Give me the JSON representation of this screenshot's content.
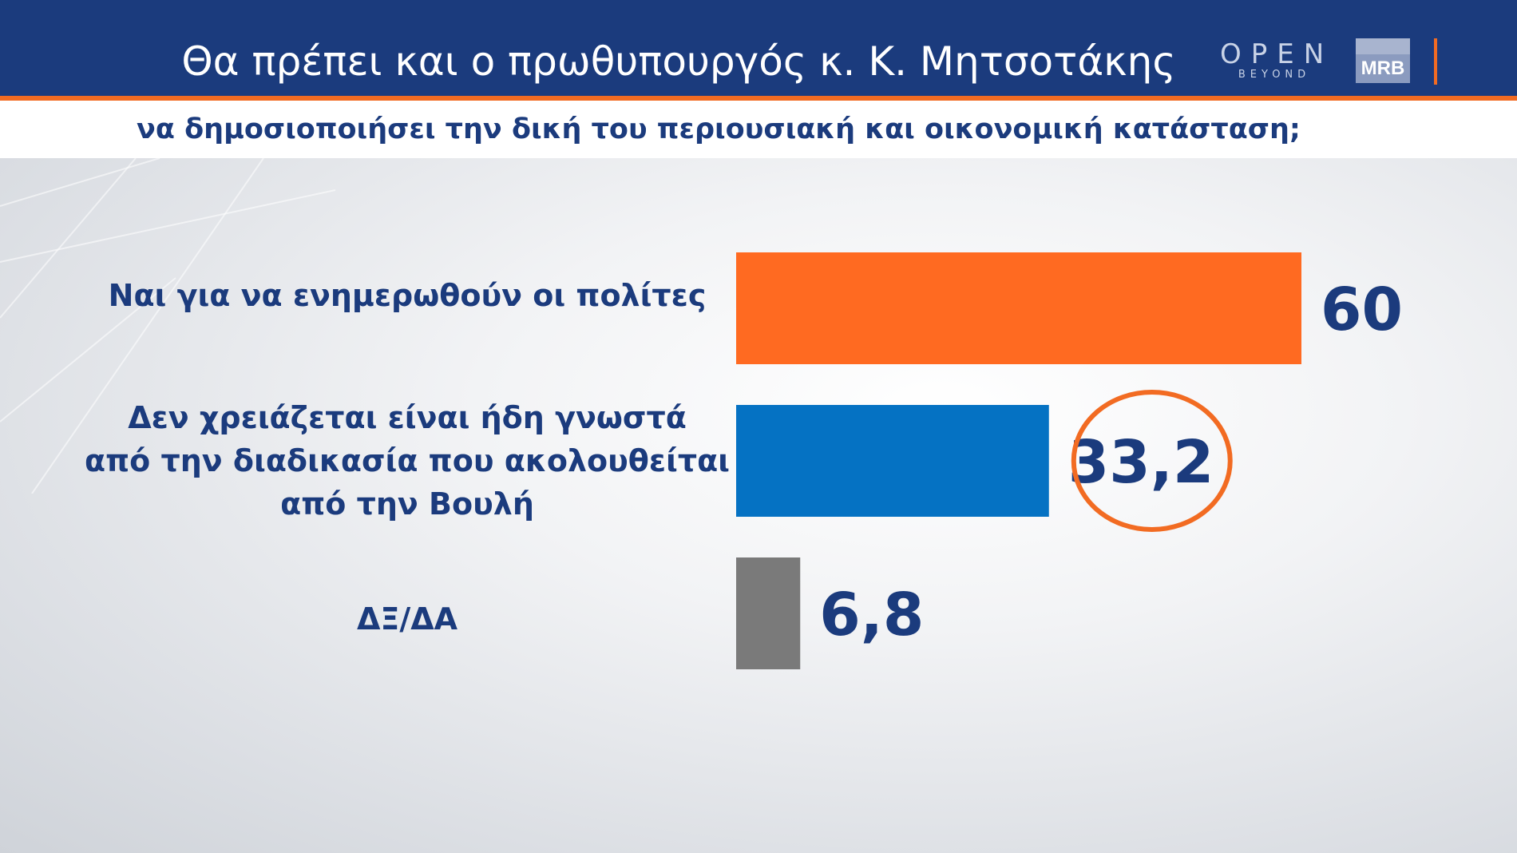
{
  "header": {
    "title": "Θα πρέπει και ο πρωθυπουργός κ. Κ. Μητσοτάκης",
    "subtitle": "να δημοσιοποιήσει την δική του περιουσιακή και οικονομική κατάσταση;"
  },
  "logos": {
    "open_main": "OPEN",
    "open_sub": "BEYOND",
    "mrb": "MRB"
  },
  "colors": {
    "header_bg": "#1b3b7d",
    "accent": "#f26b22",
    "label_text": "#1b3b7d"
  },
  "chart_data": {
    "type": "bar",
    "orientation": "horizontal",
    "title": "Θα πρέπει και ο πρωθυπουργός κ. Κ. Μητσοτάκης",
    "subtitle": "να δημοσιοποιήσει την δική του περιουσιακή και οικονομική κατάσταση;",
    "categories": [
      [
        "Ναι για να ενημερωθούν οι πολίτες"
      ],
      [
        "Δεν χρειάζεται είναι ήδη γνωστά",
        "από την διαδικασία που ακολουθείται",
        "από την Βουλή"
      ],
      [
        "ΔΞ/ΔΑ"
      ]
    ],
    "values": [
      60,
      33.2,
      6.8
    ],
    "value_labels": [
      "60",
      "33,2",
      "6,8"
    ],
    "bar_colors": [
      "#ff6a21",
      "#0572c3",
      "#7a7a7a"
    ],
    "highlighted_index": 1,
    "highlight_color": "#f26b22",
    "xlim": [
      0,
      60
    ],
    "grid": false,
    "legend": "none"
  }
}
